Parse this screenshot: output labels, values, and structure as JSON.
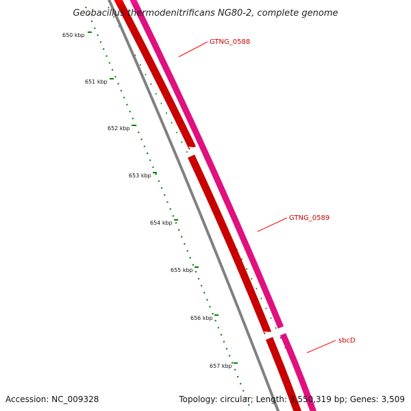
{
  "title": "Geobacillus thermodenitrificans NG80-2, complete genome",
  "footer": {
    "accession": "Accession: NC_009328",
    "summary": "Topology: circular; Length: 3,550,319 bp; Genes: 3,509"
  },
  "colors": {
    "backbone": "#808080",
    "forward_gene": "#ff0000",
    "reverse_gene": "#ff1493",
    "ticks": "#008000",
    "label_line": "#ff0000",
    "label_text": "#cc0000"
  },
  "scale": {
    "unit": "kbp",
    "labels": [
      "650 kbp",
      "651 kbp",
      "652 kbp",
      "653 kbp",
      "654 kbp",
      "655 kbp",
      "656 kbp",
      "657 kbp"
    ]
  },
  "genes": [
    {
      "name": "GTNG_0588"
    },
    {
      "name": "GTNG_0589"
    },
    {
      "name": "sbcD"
    }
  ]
}
